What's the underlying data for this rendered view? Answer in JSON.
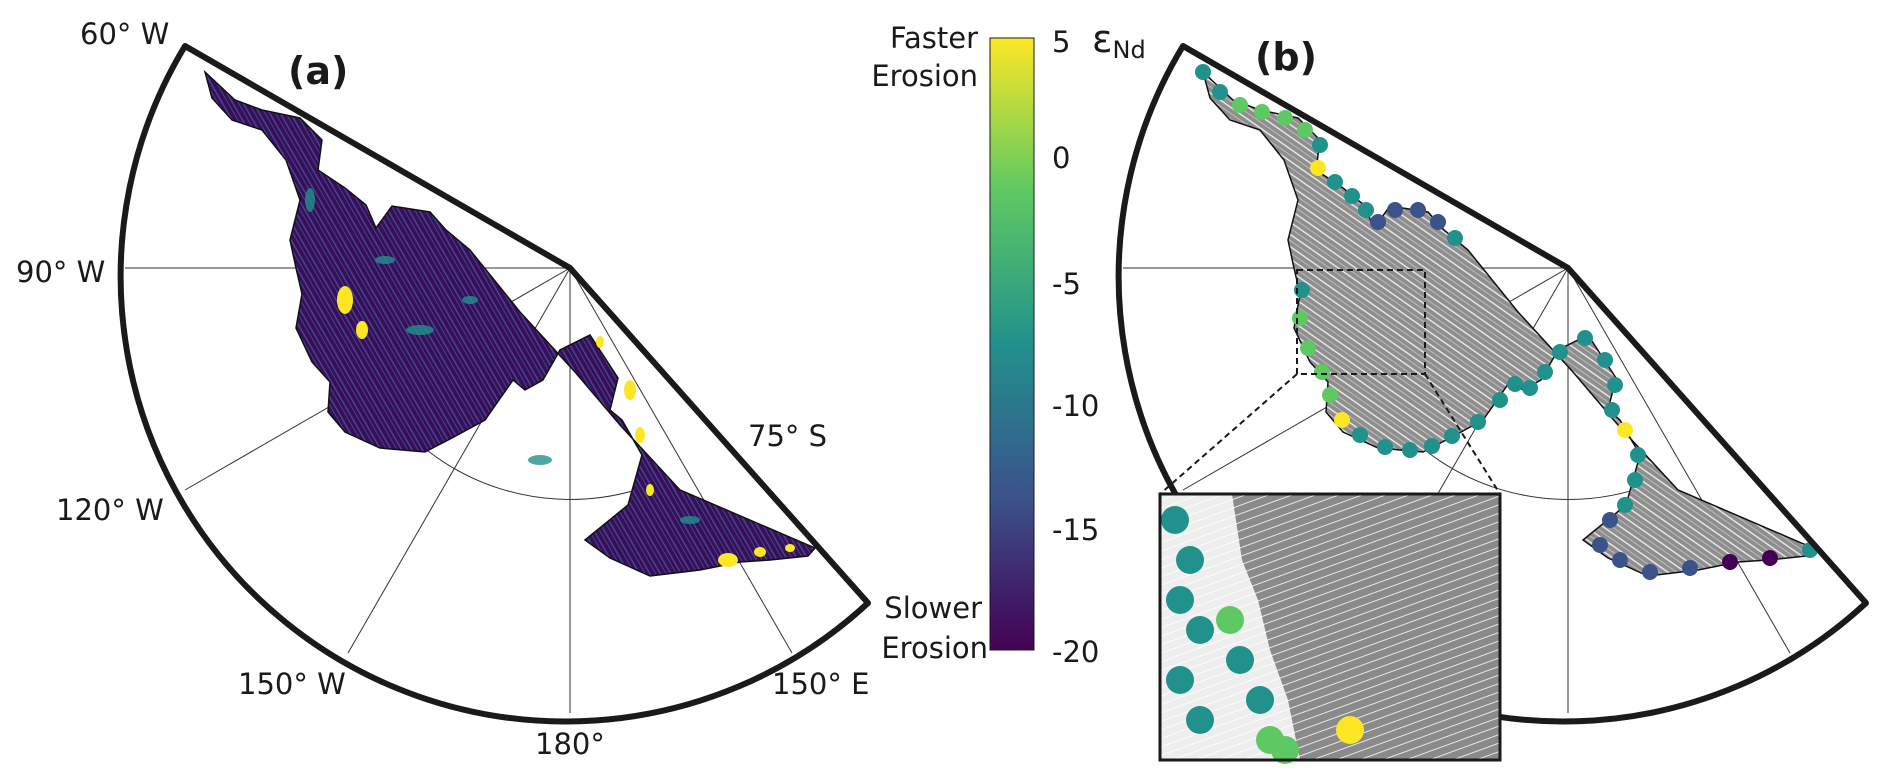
{
  "panel_a": {
    "label": "(a)",
    "meridian_labels": [
      "60° W",
      "90° W",
      "120° W",
      "150° W",
      "180°",
      "150° E"
    ],
    "parallel_label": "75° S"
  },
  "panel_b": {
    "label": "(b)",
    "inset": "dashed-box zoom"
  },
  "colorbar": {
    "title": "ε",
    "title_sub": "Nd",
    "top_label_line1": "Faster",
    "top_label_line2": "Erosion",
    "bottom_label_line1": "Slower",
    "bottom_label_line2": "Erosion",
    "ticks": [
      "5",
      "0",
      "-5",
      "-10",
      "-15",
      "-20"
    ],
    "tick_values": [
      5,
      0,
      -5,
      -10,
      -15,
      -20
    ],
    "range": [
      -20,
      5
    ],
    "colormap": "viridis",
    "colors": [
      "#440154",
      "#3b528b",
      "#21918c",
      "#5ec962",
      "#fde725"
    ]
  }
}
